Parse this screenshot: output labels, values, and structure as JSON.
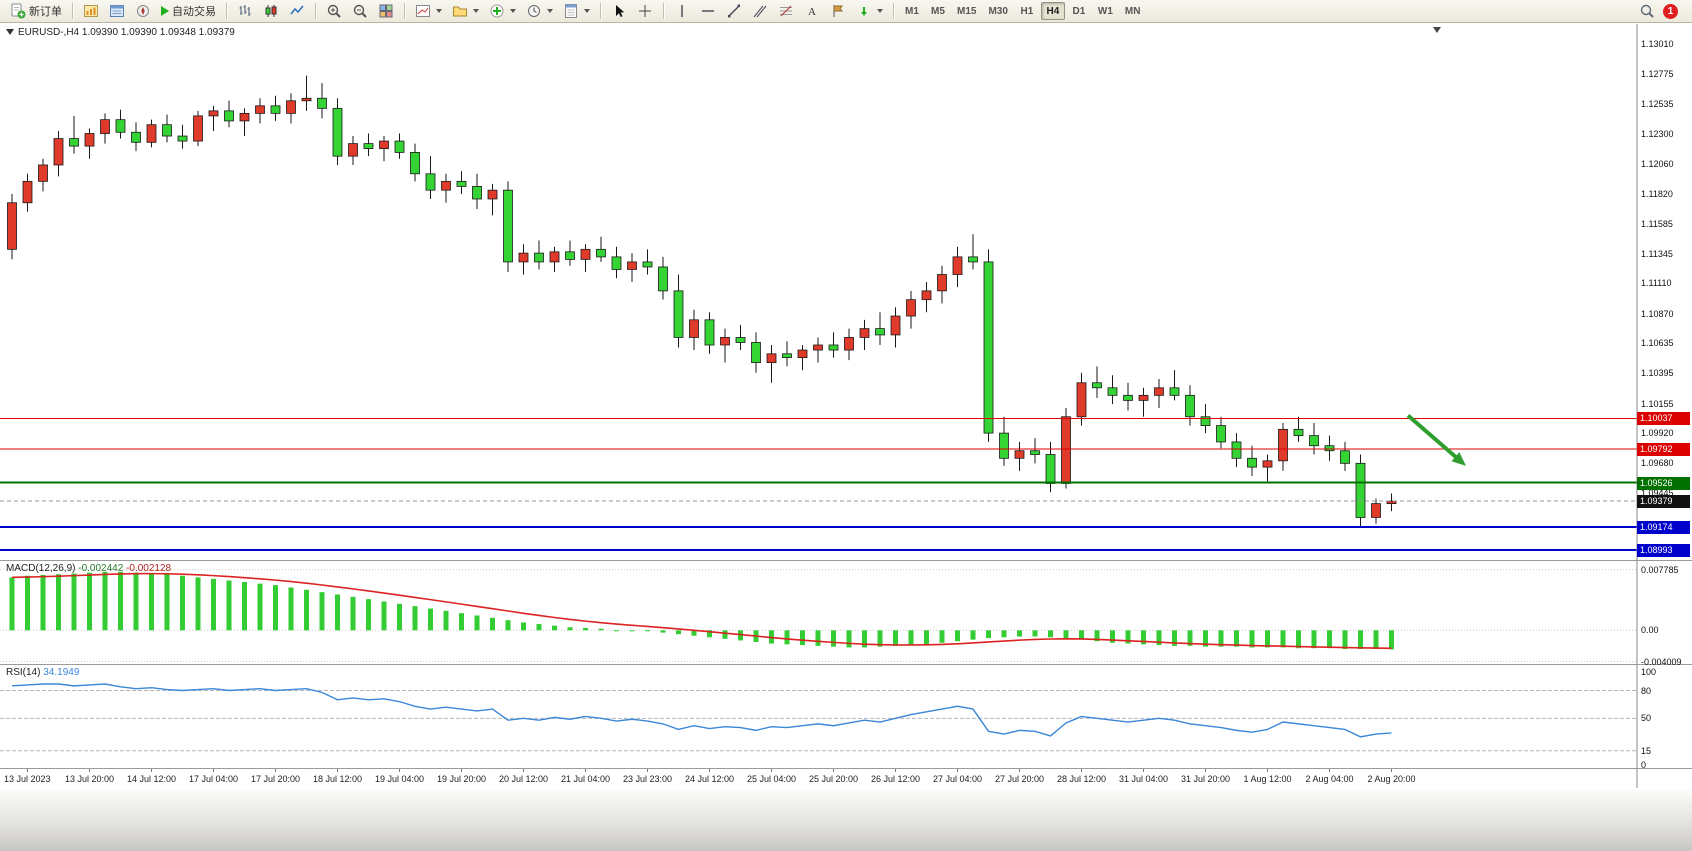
{
  "toolbar": {
    "new_order_label": "新订单",
    "auto_trading_label": "自动交易",
    "timeframes": [
      "M1",
      "M5",
      "M15",
      "M30",
      "H1",
      "H4",
      "D1",
      "W1",
      "MN"
    ],
    "active_timeframe": "H4",
    "notification_count": "1"
  },
  "main_chart": {
    "caption": "EURUSD-,H4 1.09390 1.09390 1.09348 1.09379"
  },
  "macd": {
    "label": "MACD(12,26,9)",
    "value_main": "-0.002442",
    "value_signal": "-0.002128"
  },
  "rsi": {
    "label": "RSI(14)",
    "value": "34.1949"
  },
  "chart_data": {
    "type": "candlestick",
    "symbol": "EURUSD-",
    "timeframe": "H4",
    "ohlc_display": [
      "1.09390",
      "1.09390",
      "1.09348",
      "1.09379"
    ],
    "colors": {
      "bull": "#e03a2a",
      "bear": "#35d435",
      "wick": "#1a1a1a"
    },
    "price_scale_labels": [
      1.1301,
      1.12775,
      1.12535,
      1.123,
      1.1206,
      1.1182,
      1.11585,
      1.11345,
      1.1111,
      1.1087,
      1.10635,
      1.10395,
      1.10155,
      1.0992,
      1.0968,
      1.09445
    ],
    "price_axis_boxes": [
      {
        "text": "1.10037",
        "color": "#dd0000"
      },
      {
        "text": "1.09792",
        "color": "#dd0000"
      },
      {
        "text": "1.09526",
        "color": "#007000"
      },
      {
        "text": "1.09379",
        "color": "#111111"
      },
      {
        "text": "1.09174",
        "color": "#0000cc"
      },
      {
        "text": "1.08993",
        "color": "#0000cc"
      }
    ],
    "horizontal_lines": [
      {
        "price": 1.10037,
        "color": "#e00000",
        "width": 1,
        "style": "solid"
      },
      {
        "price": 1.09792,
        "color": "#e00000",
        "width": 1,
        "style": "solid"
      },
      {
        "price": 1.09526,
        "color": "#007000",
        "width": 2,
        "style": "solid"
      },
      {
        "price": 1.09174,
        "color": "#0000cc",
        "width": 2,
        "style": "solid"
      },
      {
        "price": 1.08993,
        "color": "#0000cc",
        "width": 2,
        "style": "solid"
      },
      {
        "price": 1.09379,
        "color": "#999999",
        "width": 1,
        "style": "dash"
      }
    ],
    "annotation_arrow": {
      "from_price": 1.1006,
      "to_price": 1.0966,
      "color": "#2f9e2f"
    },
    "time_labels": [
      "13 Jul 2023",
      "13 Jul 20:00",
      "14 Jul 12:00",
      "17 Jul 04:00",
      "17 Jul 20:00",
      "18 Jul 12:00",
      "19 Jul 04:00",
      "19 Jul 20:00",
      "20 Jul 12:00",
      "21 Jul 04:00",
      "23 Jul 23:00",
      "24 Jul 12:00",
      "25 Jul 04:00",
      "25 Jul 20:00",
      "26 Jul 12:00",
      "27 Jul 04:00",
      "27 Jul 20:00",
      "28 Jul 12:00",
      "31 Jul 04:00",
      "31 Jul 20:00",
      "1 Aug 12:00",
      "2 Aug 04:00",
      "2 Aug 20:00"
    ],
    "candles": [
      [
        1.1138,
        1.1182,
        1.113,
        1.1175
      ],
      [
        1.1175,
        1.1198,
        1.1168,
        1.1192
      ],
      [
        1.1192,
        1.121,
        1.1184,
        1.1205
      ],
      [
        1.1205,
        1.1232,
        1.1196,
        1.1226
      ],
      [
        1.1226,
        1.1244,
        1.1214,
        1.122
      ],
      [
        1.122,
        1.1234,
        1.121,
        1.123
      ],
      [
        1.123,
        1.1246,
        1.1222,
        1.1241
      ],
      [
        1.1241,
        1.1249,
        1.1226,
        1.1231
      ],
      [
        1.1231,
        1.1239,
        1.1216,
        1.1223
      ],
      [
        1.1223,
        1.1241,
        1.1219,
        1.1237
      ],
      [
        1.1237,
        1.1245,
        1.1223,
        1.1228
      ],
      [
        1.1228,
        1.1237,
        1.1218,
        1.1224
      ],
      [
        1.1224,
        1.1248,
        1.122,
        1.1244
      ],
      [
        1.1244,
        1.1252,
        1.1232,
        1.1248
      ],
      [
        1.1248,
        1.1256,
        1.1235,
        1.124
      ],
      [
        1.124,
        1.125,
        1.1228,
        1.1246
      ],
      [
        1.1246,
        1.1258,
        1.1238,
        1.1252
      ],
      [
        1.1252,
        1.126,
        1.124,
        1.1246
      ],
      [
        1.1246,
        1.1262,
        1.1238,
        1.1256
      ],
      [
        1.1256,
        1.1276,
        1.1248,
        1.1258
      ],
      [
        1.1258,
        1.127,
        1.1242,
        1.125
      ],
      [
        1.125,
        1.1258,
        1.1205,
        1.1212
      ],
      [
        1.1212,
        1.1228,
        1.1205,
        1.1222
      ],
      [
        1.1222,
        1.123,
        1.1212,
        1.1218
      ],
      [
        1.1218,
        1.1228,
        1.1208,
        1.1224
      ],
      [
        1.1224,
        1.123,
        1.121,
        1.1215
      ],
      [
        1.1215,
        1.1222,
        1.1192,
        1.1198
      ],
      [
        1.1198,
        1.1212,
        1.1178,
        1.1185
      ],
      [
        1.1185,
        1.1198,
        1.1175,
        1.1192
      ],
      [
        1.1192,
        1.12,
        1.1182,
        1.1188
      ],
      [
        1.1188,
        1.1198,
        1.117,
        1.1178
      ],
      [
        1.1178,
        1.119,
        1.1165,
        1.1185
      ],
      [
        1.1185,
        1.1192,
        1.112,
        1.1128
      ],
      [
        1.1128,
        1.1142,
        1.1118,
        1.1135
      ],
      [
        1.1135,
        1.1145,
        1.1122,
        1.1128
      ],
      [
        1.1128,
        1.114,
        1.112,
        1.1136
      ],
      [
        1.1136,
        1.1145,
        1.1125,
        1.113
      ],
      [
        1.113,
        1.1142,
        1.112,
        1.1138
      ],
      [
        1.1138,
        1.1148,
        1.1128,
        1.1132
      ],
      [
        1.1132,
        1.114,
        1.1115,
        1.1122
      ],
      [
        1.1122,
        1.1135,
        1.1112,
        1.1128
      ],
      [
        1.1128,
        1.1138,
        1.1118,
        1.1124
      ],
      [
        1.1124,
        1.1132,
        1.1098,
        1.1105
      ],
      [
        1.1105,
        1.1118,
        1.106,
        1.1068
      ],
      [
        1.1068,
        1.109,
        1.1058,
        1.1082
      ],
      [
        1.1082,
        1.1088,
        1.1055,
        1.1062
      ],
      [
        1.1062,
        1.1075,
        1.1048,
        1.1068
      ],
      [
        1.1068,
        1.1078,
        1.1058,
        1.1064
      ],
      [
        1.1064,
        1.1072,
        1.104,
        1.1048
      ],
      [
        1.1048,
        1.1062,
        1.1032,
        1.1055
      ],
      [
        1.1055,
        1.1065,
        1.1045,
        1.1052
      ],
      [
        1.1052,
        1.1062,
        1.1042,
        1.1058
      ],
      [
        1.1058,
        1.1068,
        1.1048,
        1.1062
      ],
      [
        1.1062,
        1.1072,
        1.1052,
        1.1058
      ],
      [
        1.1058,
        1.1075,
        1.105,
        1.1068
      ],
      [
        1.1068,
        1.1082,
        1.1058,
        1.1075
      ],
      [
        1.1075,
        1.1088,
        1.1062,
        1.107
      ],
      [
        1.107,
        1.1092,
        1.106,
        1.1085
      ],
      [
        1.1085,
        1.1105,
        1.1075,
        1.1098
      ],
      [
        1.1098,
        1.1112,
        1.1088,
        1.1105
      ],
      [
        1.1105,
        1.1125,
        1.1095,
        1.1118
      ],
      [
        1.1118,
        1.114,
        1.1108,
        1.1132
      ],
      [
        1.1132,
        1.115,
        1.1122,
        1.1128
      ],
      [
        1.1128,
        1.1138,
        1.0985,
        1.0992
      ],
      [
        1.0992,
        1.1005,
        1.0966,
        1.0972
      ],
      [
        1.0972,
        1.0985,
        1.0962,
        1.0978
      ],
      [
        1.0978,
        1.0988,
        1.0968,
        1.0975
      ],
      [
        1.0975,
        1.0985,
        1.0945,
        1.0952
      ],
      [
        1.0952,
        1.1012,
        1.0948,
        1.1005
      ],
      [
        1.1005,
        1.104,
        1.0998,
        1.1032
      ],
      [
        1.1032,
        1.1045,
        1.102,
        1.1028
      ],
      [
        1.1028,
        1.1038,
        1.1015,
        1.1022
      ],
      [
        1.1022,
        1.1032,
        1.101,
        1.1018
      ],
      [
        1.1018,
        1.1028,
        1.1005,
        1.1022
      ],
      [
        1.1022,
        1.1035,
        1.1012,
        1.1028
      ],
      [
        1.1028,
        1.1042,
        1.1018,
        1.1022
      ],
      [
        1.1022,
        1.103,
        1.0998,
        1.1005
      ],
      [
        1.1005,
        1.1015,
        1.0992,
        1.0998
      ],
      [
        1.0998,
        1.1005,
        1.098,
        1.0985
      ],
      [
        1.0985,
        1.0992,
        1.0965,
        1.0972
      ],
      [
        1.0972,
        1.0982,
        1.0958,
        1.0965
      ],
      [
        1.0965,
        1.0975,
        1.0952,
        1.097
      ],
      [
        1.097,
        1.1,
        1.0962,
        1.0995
      ],
      [
        1.0995,
        1.1005,
        1.0985,
        1.099
      ],
      [
        1.099,
        1.1,
        1.0975,
        1.0982
      ],
      [
        1.0982,
        1.099,
        1.097,
        1.0978
      ],
      [
        1.0978,
        1.0985,
        1.0962,
        1.0968
      ],
      [
        1.0968,
        1.0975,
        1.0918,
        1.0925
      ],
      [
        1.0925,
        1.094,
        1.092,
        1.0936
      ],
      [
        1.0936,
        1.0944,
        1.093,
        1.0938
      ]
    ],
    "macd_panel": {
      "scale_labels": [
        "0.007785",
        "0.00",
        "-0.004009"
      ],
      "scale_values": [
        0.007785,
        0,
        -0.004009
      ],
      "histogram_color": "#33cc33",
      "signal_color": "#dd2222",
      "histogram": [
        0.0068,
        0.007,
        0.0071,
        0.0072,
        0.0073,
        0.0074,
        0.0075,
        0.0075,
        0.0074,
        0.0073,
        0.0072,
        0.007,
        0.0068,
        0.0066,
        0.0064,
        0.0062,
        0.006,
        0.0058,
        0.0055,
        0.0052,
        0.0049,
        0.0046,
        0.0043,
        0.004,
        0.0037,
        0.0034,
        0.0031,
        0.0028,
        0.0025,
        0.0022,
        0.0019,
        0.0016,
        0.0013,
        0.001,
        0.0008,
        0.0006,
        0.0004,
        0.0003,
        0.0002,
        0.0001,
        0.0,
        -0.0001,
        -0.0003,
        -0.0005,
        -0.0007,
        -0.0009,
        -0.0011,
        -0.0013,
        -0.0015,
        -0.0017,
        -0.0018,
        -0.0019,
        -0.002,
        -0.0021,
        -0.0022,
        -0.0022,
        -0.0021,
        -0.002,
        -0.0019,
        -0.0018,
        -0.0016,
        -0.0014,
        -0.0012,
        -0.001,
        -0.0009,
        -0.0008,
        -0.0008,
        -0.0009,
        -0.001,
        -0.0012,
        -0.0014,
        -0.0016,
        -0.0017,
        -0.0018,
        -0.0019,
        -0.002,
        -0.002,
        -0.0021,
        -0.0021,
        -0.0021,
        -0.0022,
        -0.0022,
        -0.0022,
        -0.0023,
        -0.0023,
        -0.0023,
        -0.0024,
        -0.0024,
        -0.0024,
        -0.002442
      ]
    },
    "rsi_panel": {
      "scale_labels": [
        "100",
        "80",
        "50",
        "15",
        "0"
      ],
      "scale_values": [
        100,
        80,
        50,
        15,
        0
      ],
      "levels": [
        80,
        50,
        15
      ],
      "line_color": "#3b87d9",
      "values": [
        85,
        86,
        87,
        87,
        85,
        86,
        87,
        84,
        82,
        83,
        81,
        80,
        81,
        82,
        80,
        81,
        82,
        80,
        81,
        82,
        78,
        70,
        72,
        70,
        71,
        68,
        63,
        60,
        62,
        60,
        58,
        60,
        48,
        50,
        48,
        51,
        49,
        52,
        50,
        47,
        49,
        47,
        44,
        38,
        42,
        39,
        41,
        40,
        37,
        41,
        40,
        42,
        44,
        42,
        45,
        48,
        46,
        50,
        54,
        57,
        60,
        63,
        60,
        36,
        33,
        37,
        36,
        31,
        45,
        52,
        50,
        48,
        46,
        48,
        50,
        48,
        44,
        42,
        40,
        37,
        35,
        38,
        46,
        44,
        42,
        40,
        38,
        30,
        33,
        34.19
      ]
    }
  }
}
